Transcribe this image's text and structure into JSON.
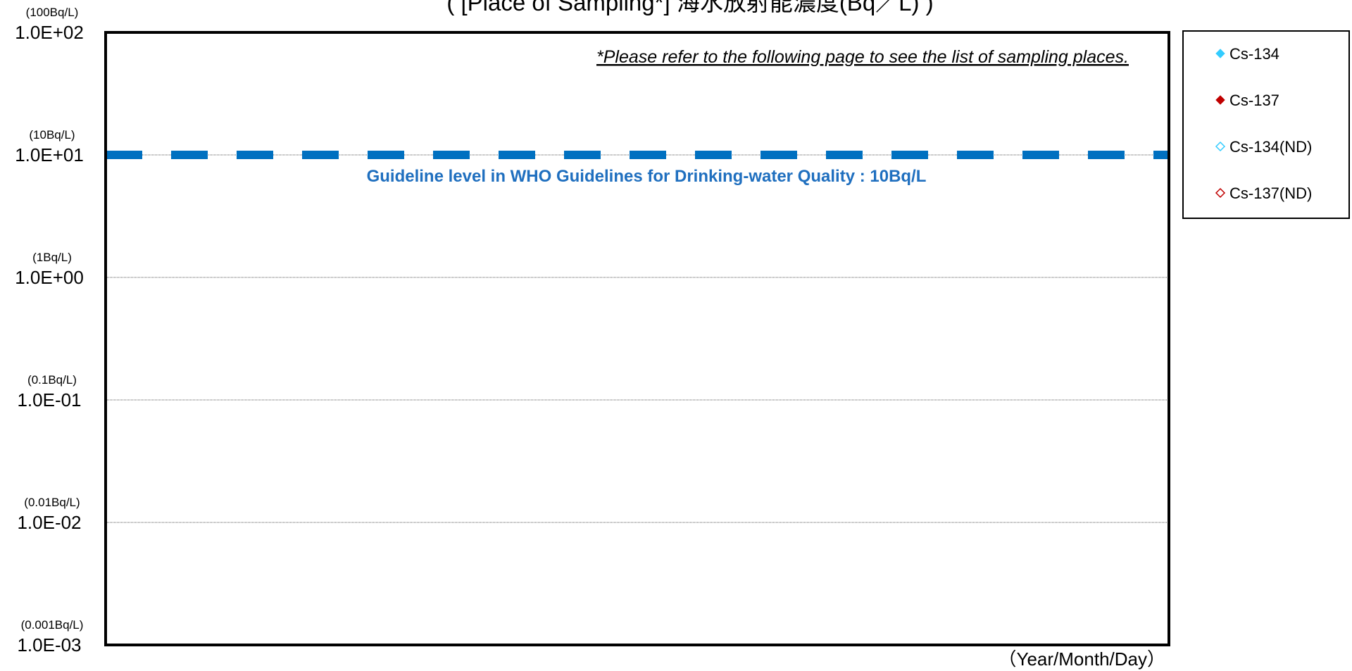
{
  "chart_data": {
    "type": "scatter",
    "title": "( [Place of Sampling*] 海水放射能濃度(Bq／L) )",
    "note": "*Please refer to the following page to see the list of sampling places.",
    "xlabel": "（Year/Month/Day）",
    "ylabel": "",
    "yscale": "log",
    "ylim": [
      0.001,
      100
    ],
    "grid": true,
    "legend_position": "right",
    "y_ticks": [
      {
        "value": 100,
        "label": "1.0E+02",
        "unit": "(100Bq/L)"
      },
      {
        "value": 10,
        "label": "1.0E+01",
        "unit": "(10Bq/L)"
      },
      {
        "value": 1,
        "label": "1.0E+00",
        "unit": "(1Bq/L)"
      },
      {
        "value": 0.1,
        "label": "1.0E-01",
        "unit": "(0.1Bq/L)"
      },
      {
        "value": 0.01,
        "label": "1.0E-02",
        "unit": "(0.01Bq/L)"
      },
      {
        "value": 0.001,
        "label": "1.0E-03",
        "unit": "(0.001Bq/L)"
      }
    ],
    "reference_line": {
      "value": 10,
      "label": "Guideline level in WHO Guidelines for Drinking-water Quality : 10Bq/L",
      "color": "#0070c0",
      "style": "dashed"
    },
    "series": [
      {
        "name": "Cs-134",
        "marker": "diamond-filled",
        "color": "#33ccff",
        "values": []
      },
      {
        "name": "Cs-137",
        "marker": "diamond-filled",
        "color": "#c00000",
        "values": []
      },
      {
        "name": "Cs-134(ND)",
        "marker": "diamond-open",
        "color": "#33ccff",
        "values": []
      },
      {
        "name": "Cs-137(ND)",
        "marker": "diamond-open",
        "color": "#c00000",
        "values": []
      }
    ]
  }
}
